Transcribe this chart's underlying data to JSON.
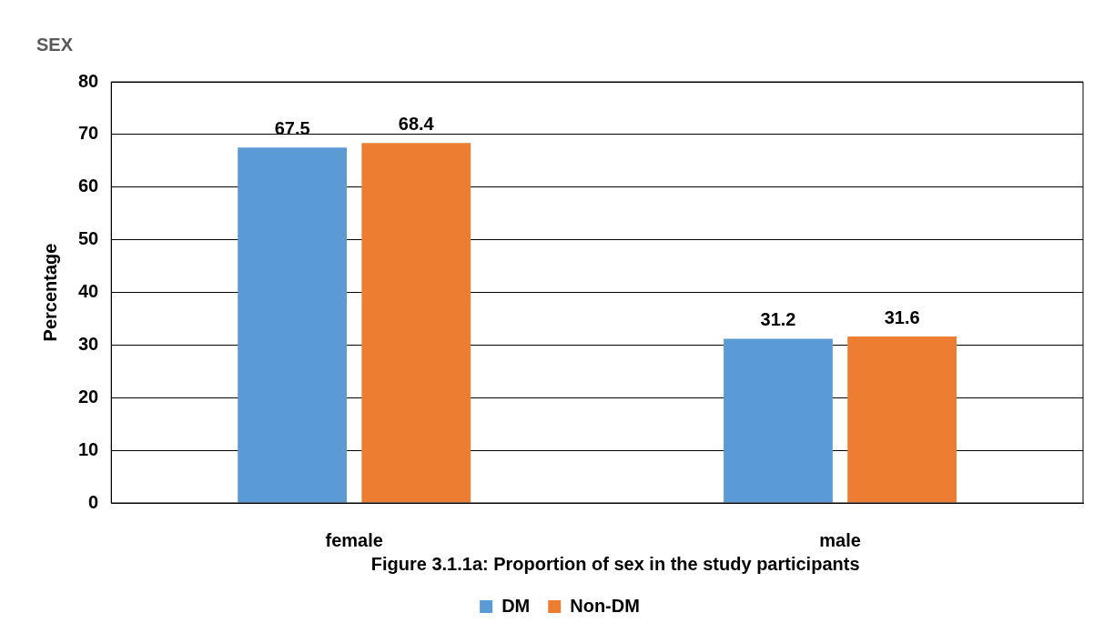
{
  "chart_data": {
    "type": "bar",
    "title": "SEX",
    "ylabel": "Percentage",
    "categories": [
      "female",
      "male"
    ],
    "series": [
      {
        "name": "DM",
        "color": "#5b9bd5",
        "values": [
          67.5,
          31.2
        ]
      },
      {
        "name": "Non-DM",
        "color": "#ed7d31",
        "values": [
          68.4,
          31.6
        ]
      }
    ],
    "ylim": [
      0,
      80
    ],
    "yticks": [
      0,
      10,
      20,
      30,
      40,
      50,
      60,
      70,
      80
    ],
    "grid": "y",
    "legend": "bottom",
    "data_labels": true,
    "annotations": [
      "Figure 3.1.1a: Proportion of sex in the study participants"
    ]
  }
}
